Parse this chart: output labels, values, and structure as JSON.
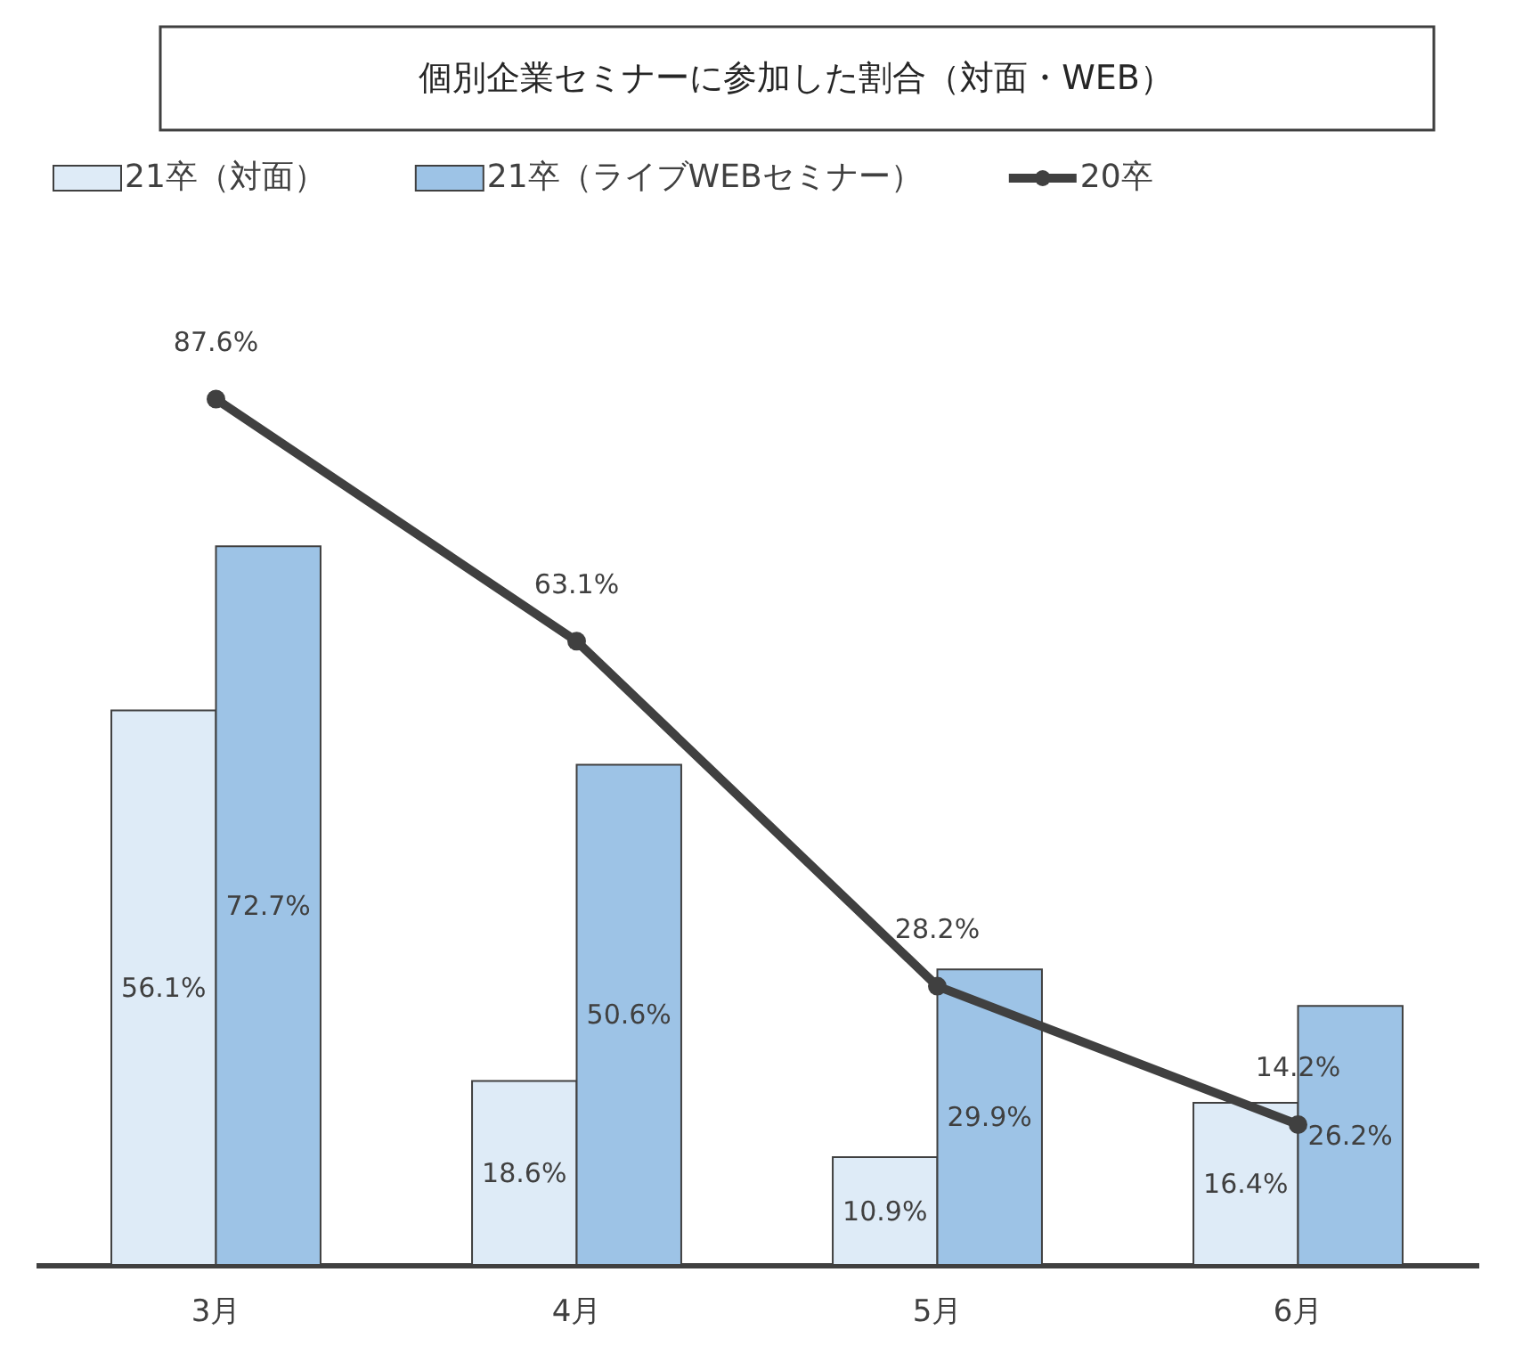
{
  "chart_data": {
    "type": "bar",
    "title": "個別企業セミナーに参加した割合（対面・WEB）",
    "categories": [
      "3月",
      "4月",
      "5月",
      "6月"
    ],
    "series": [
      {
        "name": "21卒（対面）",
        "color": "#deebf7",
        "values": [
          56.1,
          18.6,
          10.9,
          16.4
        ],
        "value_labels": [
          "56.1%",
          "18.6%",
          "10.9%",
          "16.4%"
        ]
      },
      {
        "name": "21卒（ライブWEBセミナー）",
        "color": "#9dc3e6",
        "values": [
          72.7,
          50.6,
          29.9,
          26.2
        ],
        "value_labels": [
          "72.7%",
          "50.6%",
          "29.9%",
          "26.2%"
        ]
      },
      {
        "name": "20卒",
        "type": "line",
        "color": "#404040",
        "marker": "circle",
        "values": [
          87.6,
          63.1,
          28.2,
          14.2
        ],
        "value_labels": [
          "87.6%",
          "63.1%",
          "28.2%",
          "14.2%"
        ]
      }
    ],
    "legend": "top"
  }
}
